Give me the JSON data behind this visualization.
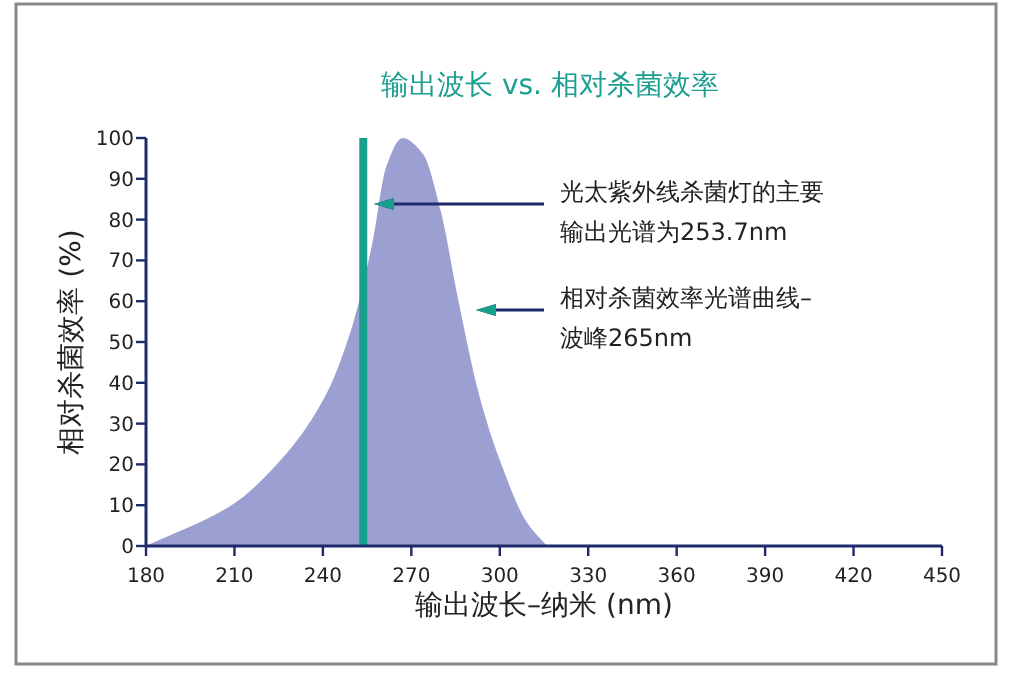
{
  "chart_data": {
    "type": "area",
    "title": "输出波长 vs. 相对杀菌效率",
    "xlabel": "输出波长–纳米 (nm)",
    "ylabel": "相对杀菌效率 (%)",
    "x": [
      180,
      209,
      228,
      241,
      250,
      257,
      261.5,
      267,
      274,
      280,
      286,
      293,
      300,
      309,
      316
    ],
    "values": [
      0,
      10,
      23,
      37,
      54,
      75,
      93,
      100,
      96,
      82,
      60,
      37,
      21,
      6,
      0
    ],
    "color": "#9c9fd2",
    "xlim": [
      180,
      450
    ],
    "ylim": [
      0,
      100
    ],
    "xticks": [
      180,
      210,
      240,
      270,
      300,
      330,
      360,
      390,
      420,
      450
    ],
    "yticks": [
      0,
      10,
      20,
      30,
      40,
      50,
      60,
      70,
      80,
      90,
      100
    ],
    "ref_lines": [
      {
        "axis": "x",
        "value": 253.7,
        "color": "#17a08c"
      }
    ],
    "annotations": [
      "光太紫外线杀菌灯的主要输出光谱为253.7nm",
      "相对杀菌效率光谱曲线–波峰265nm"
    ]
  }
}
